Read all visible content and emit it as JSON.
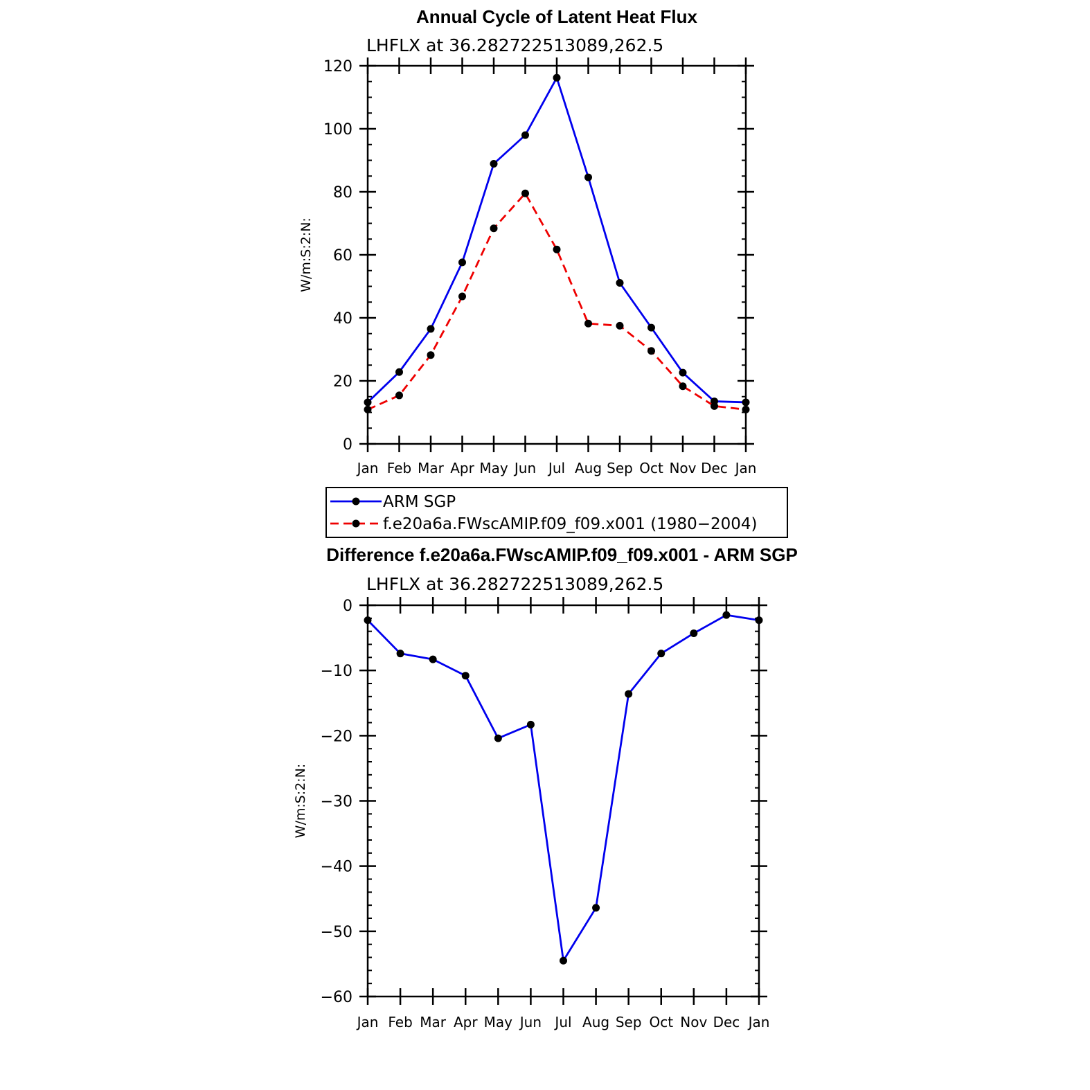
{
  "chart_data": [
    {
      "type": "line",
      "title": "Annual Cycle of Latent Heat Flux",
      "subtitle": "LHFLX at 36.282722513089,262.5",
      "ylabel": "W/m:S:2:N:",
      "xlabel": "",
      "categories": [
        "Jan",
        "Feb",
        "Mar",
        "Apr",
        "May",
        "Jun",
        "Jul",
        "Aug",
        "Sep",
        "Oct",
        "Nov",
        "Dec",
        "Jan"
      ],
      "ylim": [
        0,
        120
      ],
      "yticks": [
        0,
        20,
        40,
        60,
        80,
        100,
        120
      ],
      "series": [
        {
          "name": "ARM SGP",
          "color": "#0000ee",
          "dash": "solid",
          "values": [
            13.2,
            22.8,
            36.5,
            57.6,
            88.9,
            98.0,
            116.2,
            84.6,
            51.1,
            36.9,
            22.6,
            13.5,
            13.2
          ]
        },
        {
          "name": "f.e20a6a.FWscAMIP.f09_f09.x001 (1980−2004)",
          "color": "#ee0000",
          "dash": "dashed",
          "values": [
            10.9,
            15.4,
            28.2,
            46.8,
            68.4,
            79.5,
            61.7,
            38.2,
            37.5,
            29.5,
            18.3,
            12.0,
            10.9
          ]
        }
      ]
    },
    {
      "type": "line",
      "title": "Difference f.e20a6a.FWscAMIP.f09_f09.x001 - ARM SGP",
      "subtitle": "LHFLX at 36.282722513089,262.5",
      "ylabel": "W/m:S:2:N:",
      "xlabel": "",
      "categories": [
        "Jan",
        "Feb",
        "Mar",
        "Apr",
        "May",
        "Jun",
        "Jul",
        "Aug",
        "Sep",
        "Oct",
        "Nov",
        "Dec",
        "Jan"
      ],
      "ylim": [
        -60,
        0
      ],
      "yticks": [
        -60,
        -50,
        -40,
        -30,
        -20,
        -10,
        0
      ],
      "ytick_labels": [
        "−60",
        "−50",
        "−40",
        "−30",
        "−20",
        "−10",
        "0"
      ],
      "series": [
        {
          "color": "#0000ee",
          "dash": "solid",
          "values": [
            -2.3,
            -7.4,
            -8.3,
            -10.8,
            -20.4,
            -18.3,
            -54.5,
            -46.4,
            -13.6,
            -7.4,
            -4.3,
            -1.5,
            -2.3
          ]
        }
      ]
    }
  ]
}
